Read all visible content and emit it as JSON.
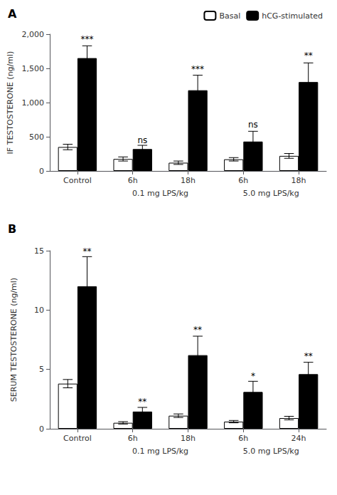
{
  "chart_data": [
    {
      "type": "bar",
      "title": "A",
      "ylabel": "IF TESTOSTERONE (ng/ml)",
      "categories": [
        "Control",
        "6h",
        "18h",
        "6h",
        "18h"
      ],
      "series": [
        {
          "name": "Basal",
          "color": "#ffffff",
          "values": [
            350,
            175,
            120,
            170,
            220
          ],
          "errors": [
            40,
            30,
            25,
            25,
            35
          ]
        },
        {
          "name": "hCG-stimulated",
          "color": "#000000",
          "values": [
            1650,
            320,
            1180,
            430,
            1300
          ],
          "errors": [
            180,
            55,
            220,
            150,
            280
          ],
          "annotations": [
            "***",
            "ns",
            "***",
            "ns",
            "**"
          ],
          "annotation_y": [
            1860,
            390,
            1430,
            610,
            1620
          ]
        }
      ],
      "group_labels": [
        {
          "text": "0.1 mg LPS/kg",
          "from": 1,
          "to": 2
        },
        {
          "text": "5.0 mg LPS/kg",
          "from": 3,
          "to": 4
        }
      ],
      "ylim": [
        0,
        2000
      ],
      "yticks": [
        0,
        500,
        1000,
        1500,
        2000
      ],
      "grid": false,
      "legend": "upper right"
    },
    {
      "type": "bar",
      "title": "B",
      "ylabel": "SERUM TESTOSTERONE (ng/ml)",
      "categories": [
        "Control",
        "6h",
        "18h",
        "6h",
        "24h"
      ],
      "series": [
        {
          "name": "Basal",
          "color": "#ffffff",
          "values": [
            3.8,
            0.5,
            1.1,
            0.6,
            0.9
          ],
          "errors": [
            0.35,
            0.1,
            0.15,
            0.1,
            0.15
          ]
        },
        {
          "name": "hCG-stimulated",
          "color": "#000000",
          "values": [
            12.0,
            1.45,
            6.2,
            3.1,
            4.6
          ],
          "errors": [
            2.5,
            0.35,
            1.6,
            0.9,
            1.0
          ],
          "annotations": [
            "**",
            "**",
            "**",
            "*",
            "**"
          ],
          "annotation_y": [
            14.6,
            1.92,
            8.0,
            4.1,
            5.75
          ]
        }
      ],
      "group_labels": [
        {
          "text": "0.1 mg LPS/kg",
          "from": 1,
          "to": 2
        },
        {
          "text": "5.0 mg LPS/kg",
          "from": 3,
          "to": 4
        }
      ],
      "ylim": [
        0,
        15
      ],
      "yticks": [
        0,
        5,
        10,
        15
      ],
      "grid": false
    }
  ]
}
